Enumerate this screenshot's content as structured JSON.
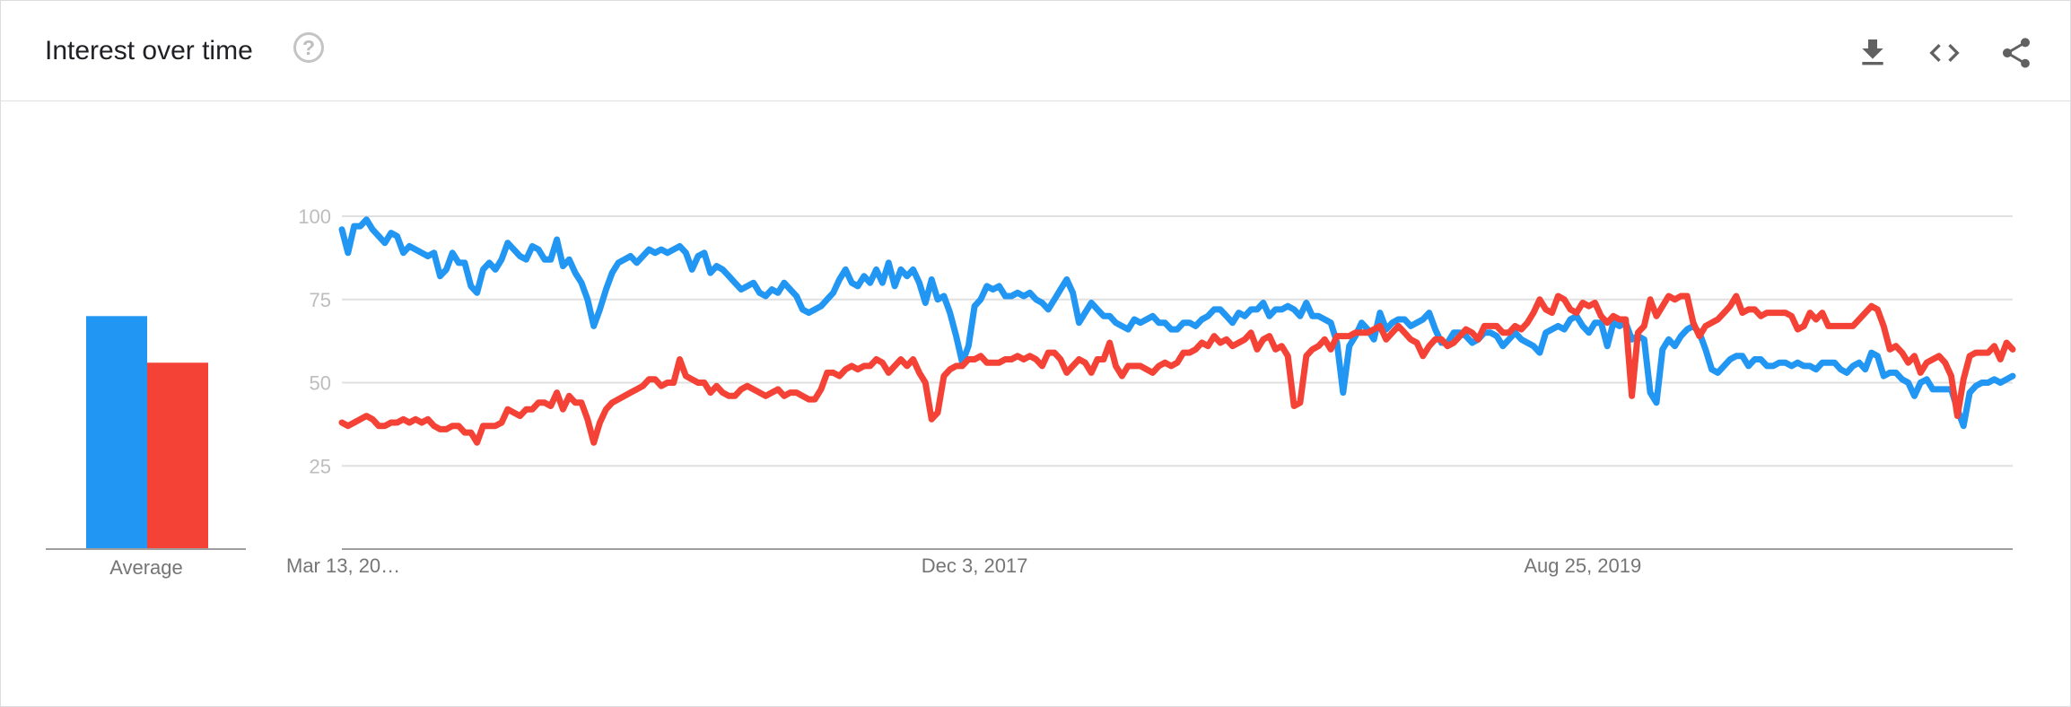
{
  "header": {
    "title": "Interest over time",
    "help_icon": "help-circle-icon",
    "help_glyph": "?",
    "actions": [
      {
        "name": "download-icon",
        "label": "Download"
      },
      {
        "name": "embed-code-icon",
        "label": "Embed"
      },
      {
        "name": "share-icon",
        "label": "Share"
      }
    ]
  },
  "colors": {
    "series_1": "#2196f3",
    "series_2": "#f44336",
    "grid": "#e0e0e0",
    "axis": "#9e9e9e",
    "tick_text": "#bdbdbd",
    "label_text": "#757575"
  },
  "average": {
    "label": "Average",
    "values": [
      70,
      56
    ]
  },
  "chart_data": {
    "type": "line",
    "ylim": [
      0,
      100
    ],
    "yticks": [
      25,
      50,
      75,
      100
    ],
    "x_tick_labels": [
      "Mar 13, 20…",
      "Dec 3, 2017",
      "Aug 25, 2019"
    ],
    "x_tick_indices": [
      0,
      103,
      202
    ],
    "grid": true,
    "series": [
      {
        "color": "#2196f3",
        "values": [
          96,
          89,
          97,
          97,
          99,
          96,
          94,
          92,
          95,
          94,
          89,
          91,
          90,
          89,
          88,
          89,
          82,
          84,
          89,
          86,
          86,
          79,
          77,
          84,
          86,
          84,
          87,
          92,
          90,
          88,
          87,
          91,
          90,
          87,
          87,
          93,
          85,
          87,
          83,
          80,
          75,
          67,
          72,
          78,
          83,
          86,
          87,
          88,
          86,
          88,
          90,
          89,
          90,
          89,
          90,
          91,
          89,
          84,
          88,
          89,
          83,
          85,
          84,
          82,
          80,
          78,
          79,
          80,
          77,
          76,
          78,
          77,
          80,
          78,
          76,
          72,
          71,
          72,
          73,
          75,
          77,
          81,
          84,
          80,
          79,
          82,
          80,
          84,
          80,
          86,
          79,
          84,
          82,
          84,
          80,
          74,
          81,
          75,
          76,
          71,
          64,
          56,
          61,
          73,
          75,
          79,
          78,
          79,
          76,
          76,
          77,
          76,
          77,
          75,
          74,
          72,
          75,
          78,
          81,
          77,
          68,
          71,
          74,
          72,
          70,
          70,
          68,
          67,
          66,
          69,
          68,
          69,
          70,
          68,
          68,
          66,
          66,
          68,
          68,
          67,
          69,
          70,
          72,
          72,
          70,
          68,
          71,
          70,
          72,
          72,
          74,
          70,
          72,
          72,
          73,
          72,
          70,
          74,
          70,
          70,
          69,
          68,
          62,
          47,
          61,
          64,
          68,
          66,
          63,
          71,
          66,
          68,
          69,
          69,
          67,
          68,
          69,
          71,
          66,
          62,
          62,
          65,
          65,
          64,
          62,
          63,
          65,
          65,
          64,
          61,
          63,
          65,
          63,
          62,
          61,
          59,
          65,
          66,
          67,
          66,
          69,
          70,
          67,
          65,
          68,
          68,
          61,
          68,
          67,
          68,
          63,
          64,
          63,
          47,
          44,
          60,
          63,
          61,
          64,
          66,
          67,
          65,
          60,
          54,
          53,
          55,
          57,
          58,
          58,
          55,
          57,
          57,
          55,
          55,
          56,
          56,
          55,
          56,
          55,
          55,
          54,
          56,
          56,
          56,
          54,
          53,
          55,
          56,
          54,
          59,
          58,
          52,
          53,
          53,
          51,
          50,
          46,
          50,
          51,
          48,
          48,
          48,
          48,
          42,
          37,
          47,
          49,
          50,
          50,
          51,
          50,
          51,
          52
        ]
      },
      {
        "color": "#f44336",
        "values": [
          38,
          37,
          38,
          39,
          40,
          39,
          37,
          37,
          38,
          38,
          39,
          38,
          39,
          38,
          39,
          37,
          36,
          36,
          37,
          37,
          35,
          35,
          32,
          37,
          37,
          37,
          38,
          42,
          41,
          40,
          42,
          42,
          44,
          44,
          43,
          47,
          42,
          46,
          44,
          44,
          39,
          32,
          38,
          42,
          44,
          45,
          46,
          47,
          48,
          49,
          51,
          51,
          49,
          50,
          50,
          57,
          52,
          51,
          50,
          50,
          47,
          49,
          47,
          46,
          46,
          48,
          49,
          48,
          47,
          46,
          47,
          48,
          46,
          47,
          47,
          46,
          45,
          45,
          48,
          53,
          53,
          52,
          54,
          55,
          54,
          55,
          55,
          57,
          56,
          53,
          55,
          57,
          55,
          57,
          53,
          50,
          39,
          41,
          52,
          54,
          55,
          55,
          57,
          57,
          58,
          56,
          56,
          56,
          57,
          57,
          58,
          57,
          58,
          57,
          55,
          59,
          59,
          57,
          53,
          55,
          57,
          56,
          53,
          57,
          57,
          62,
          55,
          52,
          55,
          55,
          55,
          54,
          53,
          55,
          56,
          55,
          56,
          59,
          59,
          60,
          62,
          61,
          64,
          62,
          63,
          61,
          62,
          63,
          65,
          60,
          63,
          64,
          60,
          61,
          58,
          43,
          44,
          58,
          60,
          61,
          63,
          60,
          64,
          64,
          64,
          65,
          65,
          65,
          66,
          67,
          63,
          65,
          67,
          65,
          63,
          62,
          58,
          61,
          63,
          63,
          61,
          62,
          64,
          66,
          65,
          63,
          67,
          67,
          67,
          65,
          65,
          67,
          66,
          68,
          71,
          75,
          72,
          71,
          76,
          75,
          72,
          71,
          74,
          73,
          74,
          70,
          68,
          70,
          69,
          69,
          46,
          65,
          67,
          75,
          70,
          73,
          76,
          75,
          76,
          76,
          68,
          64,
          67,
          68,
          69,
          71,
          73,
          76,
          71,
          72,
          72,
          70,
          71,
          71,
          71,
          71,
          70,
          66,
          67,
          71,
          69,
          71,
          67,
          67,
          67,
          67,
          67,
          69,
          71,
          73,
          72,
          67,
          60,
          61,
          59,
          56,
          58,
          53,
          56,
          57,
          58,
          56,
          52,
          40,
          51,
          58,
          59,
          59,
          59,
          61,
          57,
          62,
          60
        ]
      }
    ]
  }
}
